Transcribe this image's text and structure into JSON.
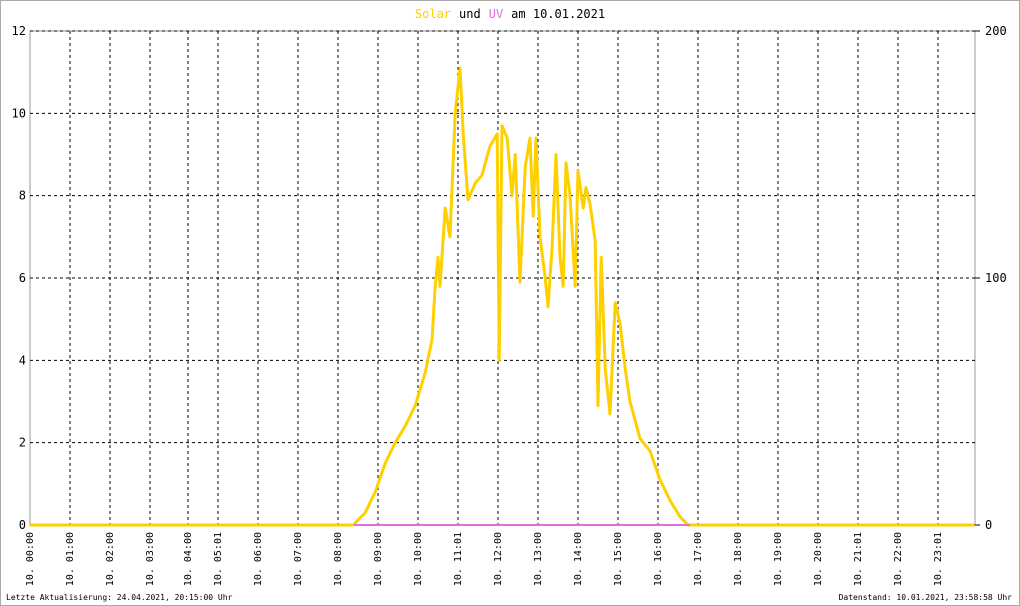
{
  "chart_data": {
    "type": "line",
    "title": "am 10.01.2021",
    "title_connector": "und",
    "footer_left": "Letzte Aktualisierung: 24.04.2021, 20:15:00 Uhr",
    "footer_right": "Datenstand: 10.01.2021, 23:58:58 Uhr",
    "xlim": [
      0,
      23.625
    ],
    "xticks": [
      {
        "value": 0,
        "label": "10. 00:00"
      },
      {
        "value": 1,
        "label": "10. 01:00"
      },
      {
        "value": 2,
        "label": "10. 02:00"
      },
      {
        "value": 3,
        "label": "10. 03:00"
      },
      {
        "value": 3.95,
        "label": "10. 04:00"
      },
      {
        "value": 4.7,
        "label": "10. 05:01"
      },
      {
        "value": 5.7,
        "label": "10. 06:00"
      },
      {
        "value": 6.7,
        "label": "10. 07:00"
      },
      {
        "value": 7.7,
        "label": "10. 08:00"
      },
      {
        "value": 8.7,
        "label": "10. 09:00"
      },
      {
        "value": 9.7,
        "label": "10. 10:00"
      },
      {
        "value": 10.7,
        "label": "10. 11:01"
      },
      {
        "value": 11.7,
        "label": "10. 12:00"
      },
      {
        "value": 12.7,
        "label": "10. 13:00"
      },
      {
        "value": 13.7,
        "label": "10. 14:00"
      },
      {
        "value": 14.7,
        "label": "10. 15:00"
      },
      {
        "value": 15.7,
        "label": "10. 16:00"
      },
      {
        "value": 16.7,
        "label": "10. 17:00"
      },
      {
        "value": 17.7,
        "label": "10. 18:00"
      },
      {
        "value": 18.7,
        "label": "10. 19:00"
      },
      {
        "value": 19.7,
        "label": "10. 20:00"
      },
      {
        "value": 20.7,
        "label": "10. 21:01"
      },
      {
        "value": 21.7,
        "label": "10. 22:00"
      },
      {
        "value": 22.7,
        "label": "10. 23:01"
      }
    ],
    "ylim": [
      0,
      12
    ],
    "yticks": [
      0,
      2,
      4,
      6,
      8,
      10,
      12
    ],
    "y2lim": [
      0,
      200
    ],
    "y2ticks": [
      0,
      100,
      200
    ],
    "grid": true,
    "series": [
      {
        "name": "Solar",
        "color": "#ffd000",
        "x": [
          0,
          8.08,
          8.38,
          8.63,
          8.88,
          9.13,
          9.38,
          9.63,
          9.88,
          10.05,
          10.13,
          10.2,
          10.25,
          10.38,
          10.5,
          10.63,
          10.75,
          10.83,
          10.95,
          11.13,
          11.3,
          11.5,
          11.68,
          11.73,
          11.8,
          11.93,
          12.05,
          12.13,
          12.25,
          12.38,
          12.5,
          12.58,
          12.65,
          12.75,
          12.88,
          12.95,
          13.05,
          13.15,
          13.25,
          13.33,
          13.4,
          13.5,
          13.63,
          13.7,
          13.83,
          13.9,
          14.0,
          14.13,
          14.2,
          14.28,
          14.38,
          14.5,
          14.63,
          14.75,
          14.88,
          15.0,
          15.25,
          15.5,
          15.75,
          16.0,
          16.25,
          16.45,
          23.6
        ],
        "values": [
          0,
          0,
          0.3,
          0.8,
          1.5,
          2.0,
          2.4,
          2.9,
          3.7,
          4.5,
          5.8,
          6.5,
          5.8,
          7.7,
          7.0,
          10.0,
          11.1,
          9.5,
          7.9,
          8.3,
          8.5,
          9.2,
          9.5,
          4.0,
          9.7,
          9.4,
          8.0,
          9.0,
          5.9,
          8.7,
          9.4,
          7.5,
          9.4,
          7.0,
          6.0,
          5.3,
          6.7,
          9.0,
          6.5,
          5.8,
          8.8,
          8.0,
          5.8,
          8.6,
          7.7,
          8.2,
          7.8,
          6.9,
          2.9,
          6.5,
          3.8,
          2.7,
          5.4,
          4.9,
          3.8,
          3.0,
          2.1,
          1.8,
          1.1,
          0.6,
          0.2,
          0,
          0
        ]
      },
      {
        "name": "UV",
        "color": "#e070e0",
        "axis": "y2",
        "x": [
          8.1,
          16.5
        ],
        "values": [
          0,
          0
        ]
      }
    ]
  }
}
